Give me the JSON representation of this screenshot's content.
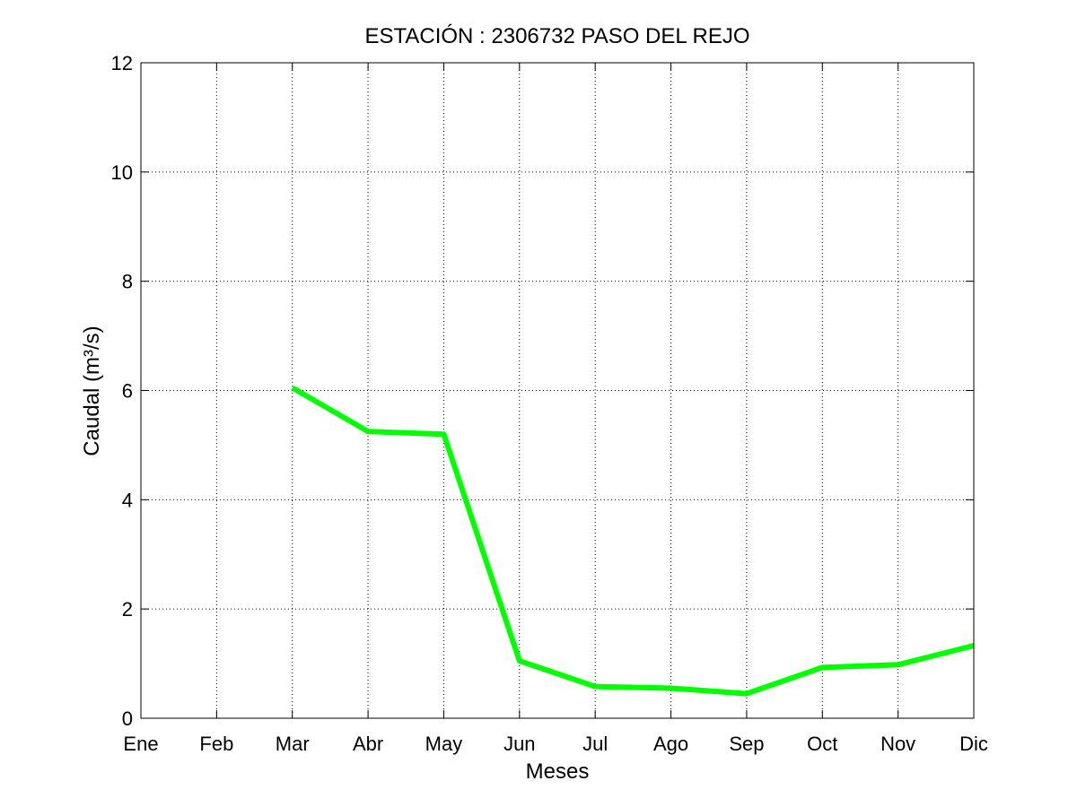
{
  "chart_data": {
    "type": "line",
    "title": "ESTACIÓN :  2306732  PASO DEL REJO",
    "xlabel": "Meses",
    "ylabel": "Caudal (m³/s)",
    "categories": [
      "Ene",
      "Feb",
      "Mar",
      "Abr",
      "May",
      "Jun",
      "Jul",
      "Ago",
      "Sep",
      "Oct",
      "Nov",
      "Dic"
    ],
    "ylim": [
      0,
      12
    ],
    "yticks": [
      "0",
      "2",
      "4",
      "6",
      "8",
      "10",
      "12"
    ],
    "grid": true,
    "series": [
      {
        "color": "#00ff00",
        "values": [
          null,
          null,
          6.05,
          5.25,
          5.2,
          1.05,
          0.58,
          0.55,
          0.45,
          0.93,
          0.98,
          1.33
        ]
      }
    ]
  }
}
